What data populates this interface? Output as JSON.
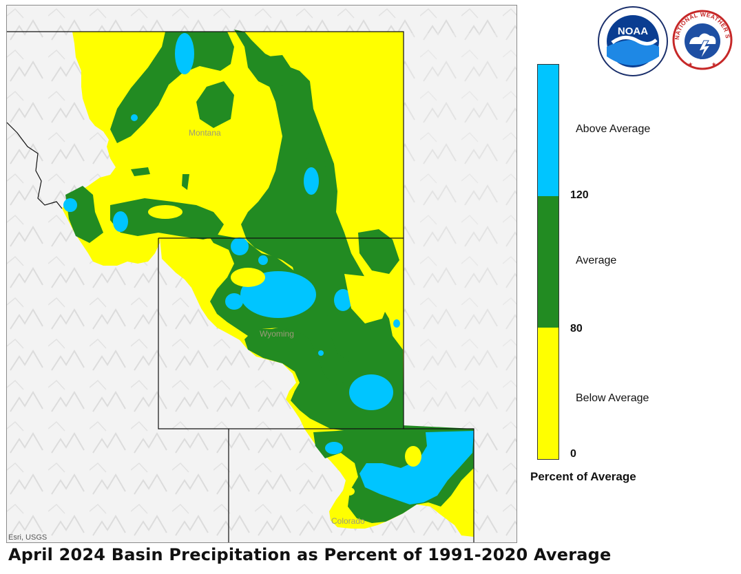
{
  "title": "April 2024 Basin Precipitation as Percent of 1991-2020 Average",
  "map": {
    "credit": "Esri, USGS",
    "state_labels": [
      "Montana",
      "Wyoming",
      "Colorado"
    ]
  },
  "legend": {
    "title": "Percent of Average",
    "classes": [
      {
        "label": "Above Average",
        "color": "#00c5ff"
      },
      {
        "label": "Average",
        "color": "#228b22"
      },
      {
        "label": "Below Average",
        "color": "#ffff00"
      }
    ],
    "breaks": [
      "120",
      "80",
      "0"
    ]
  },
  "logos": [
    {
      "icon": "noaa-logo",
      "text": "NOAA"
    },
    {
      "icon": "national-weather-service-logo",
      "text": "NATIONAL WEATHER SERVICE"
    }
  ]
}
